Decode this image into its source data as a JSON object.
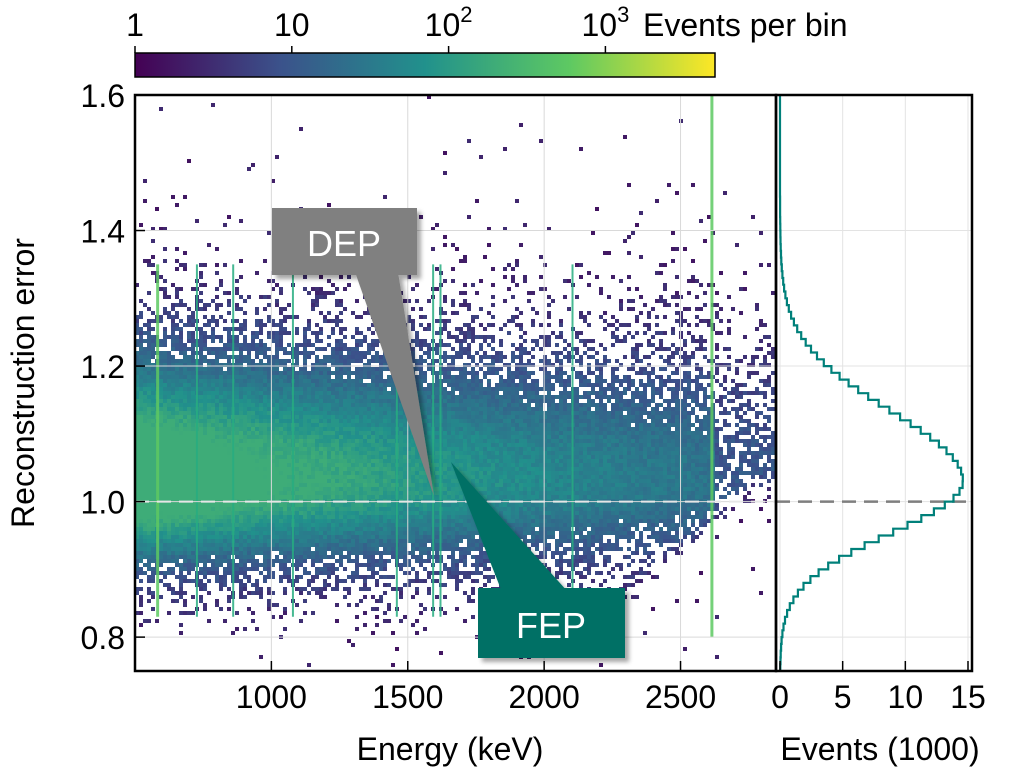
{
  "chart_data": [
    {
      "type": "heatmap",
      "xlabel": "Energy (keV)",
      "ylabel": "Reconstruction error",
      "xlim": [
        500,
        2850
      ],
      "ylim": [
        0.75,
        1.6
      ],
      "x_ticks": [
        1000,
        1500,
        2000,
        2500
      ],
      "x_tick_labels": [
        "1000",
        "1500",
        "2000",
        "2500"
      ],
      "y_ticks": [
        0.8,
        1.0,
        1.2,
        1.4,
        1.6
      ],
      "y_tick_labels": [
        "0.8",
        "1.0",
        "1.2",
        "1.4",
        "1.6"
      ],
      "reference_line": 1.0,
      "grid": true,
      "colorbar": {
        "label": "Events per bin",
        "scale": "log",
        "range": [
          1,
          5000
        ],
        "tick_labels": [
          {
            "value": 1,
            "base": "1",
            "exp": ""
          },
          {
            "value": 10,
            "base": "10",
            "exp": ""
          },
          {
            "value": 100,
            "base": "10",
            "exp": "2"
          },
          {
            "value": 1000,
            "base": "10",
            "exp": "3"
          }
        ],
        "colormap": "viridis",
        "colors": [
          "#440154",
          "#3b528b",
          "#21918c",
          "#5ec962",
          "#fde725"
        ]
      },
      "peak_lines_keV": [
        583,
        727,
        860,
        1079,
        1460,
        1593,
        1620,
        2104,
        2615
      ],
      "annotations": [
        {
          "label": "DEP",
          "x": 1593,
          "y": 1.0,
          "color": "#808080"
        },
        {
          "label": "FEP",
          "x": 1620,
          "y": 1.05,
          "color": "#007065"
        }
      ]
    },
    {
      "type": "line",
      "xlabel": "Events (1000)",
      "xlim": [
        0,
        15
      ],
      "ylim": [
        0.75,
        1.6
      ],
      "x_ticks": [
        0,
        5,
        10,
        15
      ],
      "x_tick_labels": [
        "0",
        "5",
        "10",
        "15"
      ],
      "reference_line": 1.0,
      "grid": true,
      "series_color": "#00807a",
      "histogram_mean": 1.03,
      "histogram_sigma": 0.09,
      "histogram_peak": 14.6
    }
  ]
}
